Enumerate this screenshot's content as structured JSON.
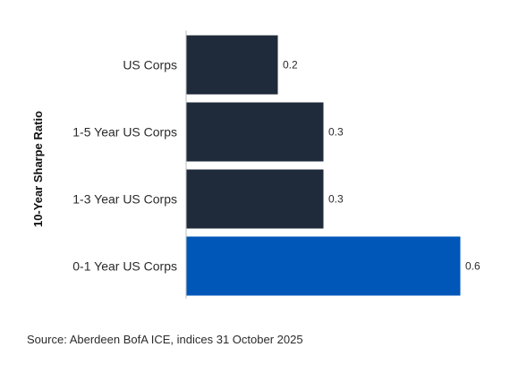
{
  "chart_data": {
    "type": "bar",
    "orientation": "horizontal",
    "categories": [
      "US Corps",
      "1-5 Year US Corps",
      "1-3 Year US Corps",
      "0-1 Year US Corps"
    ],
    "values": [
      0.2,
      0.3,
      0.3,
      0.6
    ],
    "value_labels": [
      "0.2",
      "0.3",
      "0.3",
      "0.6"
    ],
    "ylabel": "10-Year Sharpe Ratio",
    "xlim": [
      0,
      0.7
    ],
    "grid": false,
    "colors": {
      "default_bar": "#1f2a3a",
      "highlight_bar": "#0057b8",
      "axis_line": "#bfbfbf"
    },
    "highlighted_category": "0-1 Year US Corps"
  },
  "source": "Source: Aberdeen BofA ICE, indices 31 October 2025"
}
